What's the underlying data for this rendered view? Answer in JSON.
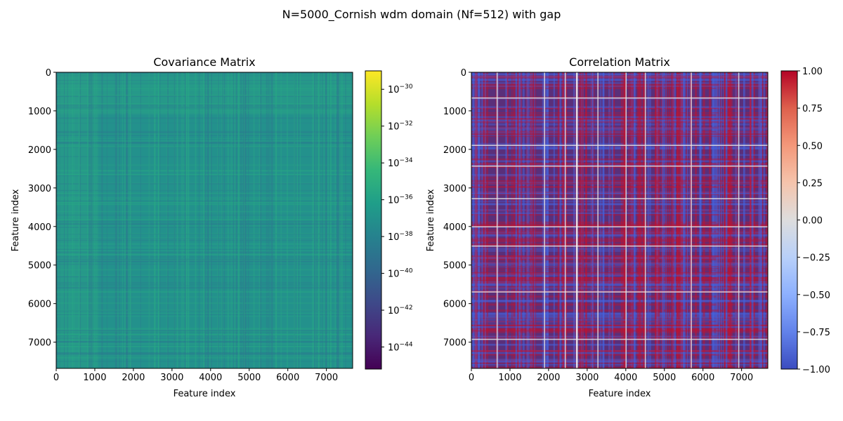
{
  "figure": {
    "suptitle": "N=5000_Cornish wdm domain (Nf=512) with gap"
  },
  "chart_data": [
    {
      "type": "heatmap",
      "title": "Covariance Matrix",
      "xlabel": "Feature index",
      "ylabel": "Feature index",
      "n_features": 7680,
      "xlim": [
        0,
        7680
      ],
      "ylim": [
        7680,
        0
      ],
      "x_ticks": [
        0,
        1000,
        2000,
        3000,
        4000,
        5000,
        6000,
        7000
      ],
      "y_ticks": [
        0,
        1000,
        2000,
        3000,
        4000,
        5000,
        6000,
        7000
      ],
      "colormap": "viridis",
      "color_scale": "log",
      "colorbar": {
        "range_log10": [
          -45.2,
          -29
        ],
        "tick_exponents": [
          -30,
          -32,
          -34,
          -36,
          -38,
          -40,
          -42,
          -44
        ],
        "tick_base": "10"
      },
      "typical_value_log10": -35.5
    },
    {
      "type": "heatmap",
      "title": "Correlation Matrix",
      "xlabel": "Feature index",
      "ylabel": "Feature index",
      "n_features": 7680,
      "xlim": [
        0,
        7680
      ],
      "ylim": [
        7680,
        0
      ],
      "x_ticks": [
        0,
        1000,
        2000,
        3000,
        4000,
        5000,
        6000,
        7000
      ],
      "y_ticks": [
        0,
        1000,
        2000,
        3000,
        4000,
        5000,
        6000,
        7000
      ],
      "colormap": "coolwarm",
      "color_scale": "linear",
      "colorbar": {
        "range": [
          -1,
          1
        ],
        "tick_labels": [
          "1.00",
          "0.75",
          "0.50",
          "0.25",
          "0.00",
          "−0.25",
          "−0.50",
          "−0.75",
          "−1.00"
        ],
        "tick_values": [
          1,
          0.75,
          0.5,
          0.25,
          0,
          -0.25,
          -0.5,
          -0.75,
          -1
        ]
      }
    }
  ],
  "colors": {
    "viridis": [
      "#440154",
      "#482878",
      "#3e4989",
      "#31688e",
      "#26828e",
      "#1f9e89",
      "#35b779",
      "#6ece58",
      "#b5de2b",
      "#fde725"
    ],
    "coolwarm": [
      "#3b4cc0",
      "#6282ea",
      "#8db0fe",
      "#b8d0f9",
      "#dddddd",
      "#f5c4ac",
      "#f4987a",
      "#de604d",
      "#b40426"
    ],
    "corr_background": "#5a2f7a",
    "gap_line": "#e8e8e8"
  }
}
